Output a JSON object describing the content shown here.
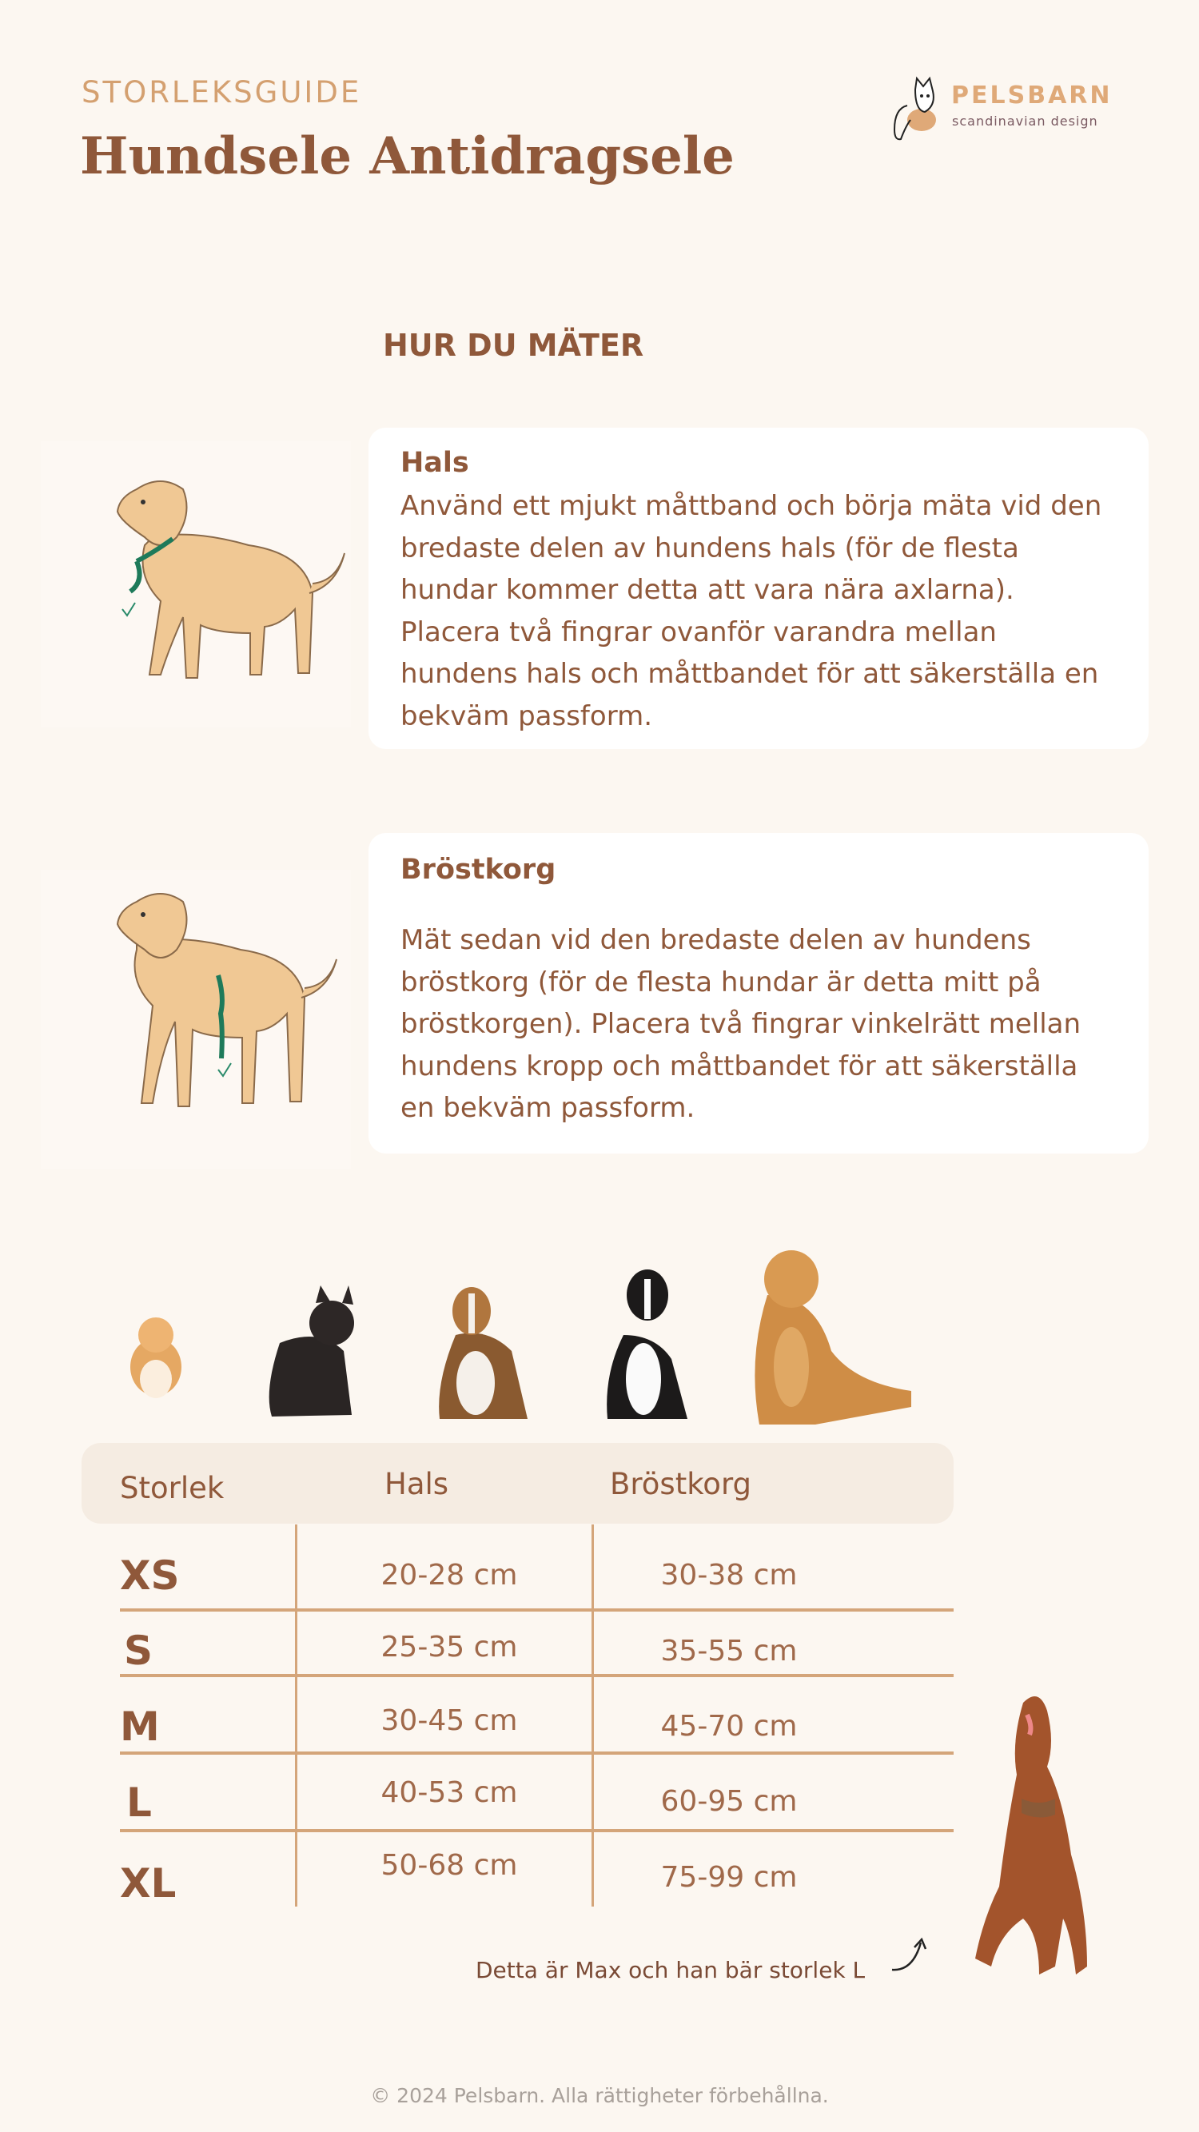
{
  "header": {
    "eyebrow": "STORLEKSGUIDE",
    "title": "Hundsele Antidragsele",
    "logo": {
      "brand": "PELSBARN",
      "tagline": "scandinavian design"
    }
  },
  "how_to_measure": {
    "heading": "HUR DU MÄTER",
    "sections": [
      {
        "title": "Hals",
        "text": "Använd ett mjukt måttband och börja mäta vid den bredaste delen av hundens hals (för de flesta hundar kommer detta att vara nära axlarna). Placera två fingrar ovanför varandra mellan hundens hals och måttbandet för att säkerställa en bekväm passform."
      },
      {
        "title": "Bröstkorg",
        "text": "Mät sedan vid den bredaste delen av hundens bröstkorg (för de flesta hundar är detta mitt på bröstkorgen). Placera två fingrar vinkelrätt mellan hundens kropp och måttbandet för att säkerställa en bekväm passform."
      }
    ]
  },
  "size_table": {
    "headers": [
      "Storlek",
      "Hals",
      "Bröstkorg"
    ],
    "rows": [
      {
        "size": "XS",
        "hals": "20-28 cm",
        "brostkorg": "30-38 cm"
      },
      {
        "size": "S",
        "hals": "25-35 cm",
        "brostkorg": "35-55 cm"
      },
      {
        "size": "M",
        "hals": "30-45 cm",
        "brostkorg": "45-70 cm"
      },
      {
        "size": "L",
        "hals": "40-53 cm",
        "brostkorg": "60-95 cm"
      },
      {
        "size": "XL",
        "hals": "50-68 cm",
        "brostkorg": "75-99 cm"
      }
    ]
  },
  "caption": "Detta är Max och han bär storlek L",
  "footer": "© 2024 Pelsbarn. Alla rättigheter förbehållna.",
  "colors": {
    "background": "#fcf7f1",
    "primary": "#8f583a",
    "accent": "#d4a070",
    "table_header": "#f5ece2",
    "tape": "#1e7a5a"
  }
}
